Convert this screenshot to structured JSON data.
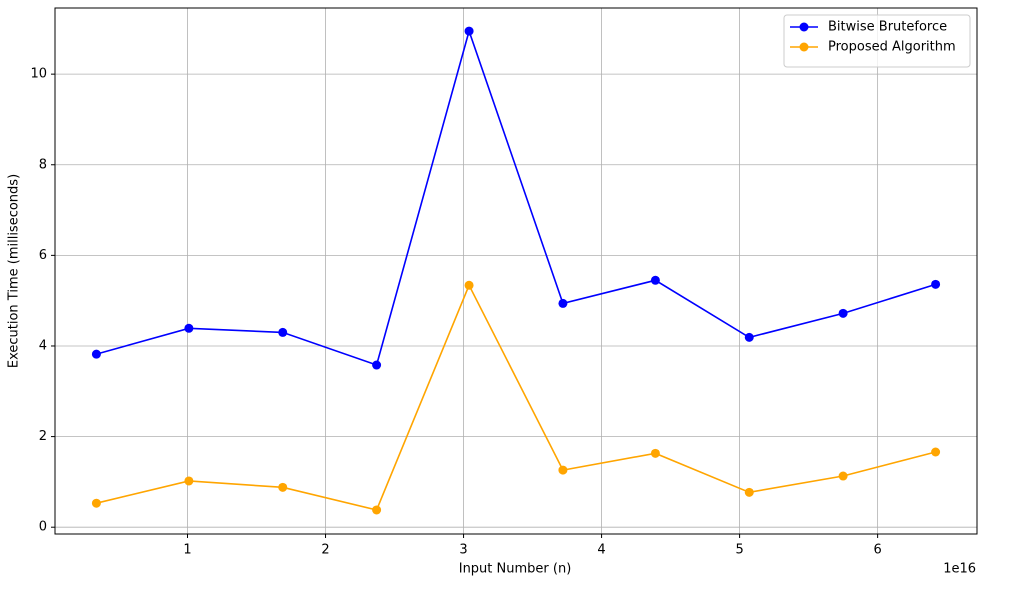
{
  "chart_data": {
    "type": "line",
    "x_label": "Input Number (n)",
    "y_label": "Execution Time (milliseconds)",
    "x_offset_label": "1e16",
    "x": [
      0.34,
      1.01,
      1.69,
      2.37,
      3.04,
      3.72,
      4.39,
      5.07,
      5.75,
      6.42
    ],
    "series": [
      {
        "name": "Bitwise Bruteforce",
        "color": "#0000ff",
        "values": [
          3.82,
          4.39,
          4.3,
          3.58,
          10.95,
          4.94,
          5.45,
          4.19,
          4.72,
          5.36
        ]
      },
      {
        "name": "Proposed Algorithm",
        "color": "#ffa500",
        "values": [
          0.53,
          1.02,
          0.88,
          0.38,
          5.34,
          1.26,
          1.63,
          0.77,
          1.13,
          1.66
        ]
      }
    ],
    "xlim": [
      0.04,
      6.72
    ],
    "xticks": [
      1,
      2,
      3,
      4,
      5,
      6
    ],
    "ylim": [
      -0.15,
      11.46
    ],
    "yticks": [
      0,
      2,
      4,
      6,
      8,
      10
    ],
    "grid": true,
    "legend": "upper right"
  }
}
